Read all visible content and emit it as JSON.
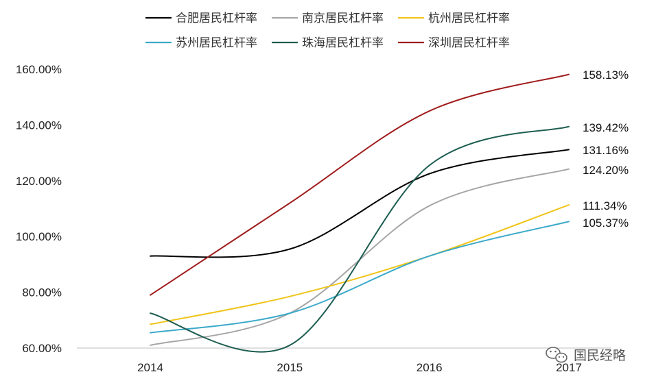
{
  "chart_data": {
    "type": "line",
    "x": [
      "2014",
      "2015",
      "2016",
      "2017"
    ],
    "ylim": [
      60,
      160
    ],
    "yticks": [
      "60.00%",
      "80.00%",
      "100.00%",
      "120.00%",
      "140.00%",
      "160.00%"
    ],
    "ytick_values": [
      60,
      80,
      100,
      120,
      140,
      160
    ],
    "grid": false,
    "legend_position": "top",
    "series": [
      {
        "name": "合肥居民杠杆率",
        "color": "#000000",
        "values": [
          93.0,
          95.5,
          122.5,
          131.16
        ],
        "end_label": "131.16%"
      },
      {
        "name": "南京居民杠杆率",
        "color": "#a6a6a6",
        "values": [
          61.0,
          72.5,
          111.0,
          124.2
        ],
        "end_label": "124.20%"
      },
      {
        "name": "杭州居民杠杆率",
        "color": "#f0c419",
        "values": [
          68.5,
          78.5,
          93.0,
          111.34
        ],
        "end_label": "111.34%"
      },
      {
        "name": "苏州居民杠杆率",
        "color": "#3ba9c9",
        "values": [
          65.5,
          72.5,
          93.0,
          105.37
        ],
        "end_label": "105.37%"
      },
      {
        "name": "珠海居民杠杆率",
        "color": "#1e5e52",
        "values": [
          72.5,
          61.0,
          125.5,
          139.42
        ],
        "end_label": "139.42%"
      },
      {
        "name": "深圳居民杠杆率",
        "color": "#a01c1c",
        "values": [
          79.0,
          112.0,
          145.0,
          158.13
        ],
        "end_label": "158.13%"
      }
    ]
  },
  "watermark": {
    "text": "国民经略",
    "icon": "wechat-icon"
  }
}
